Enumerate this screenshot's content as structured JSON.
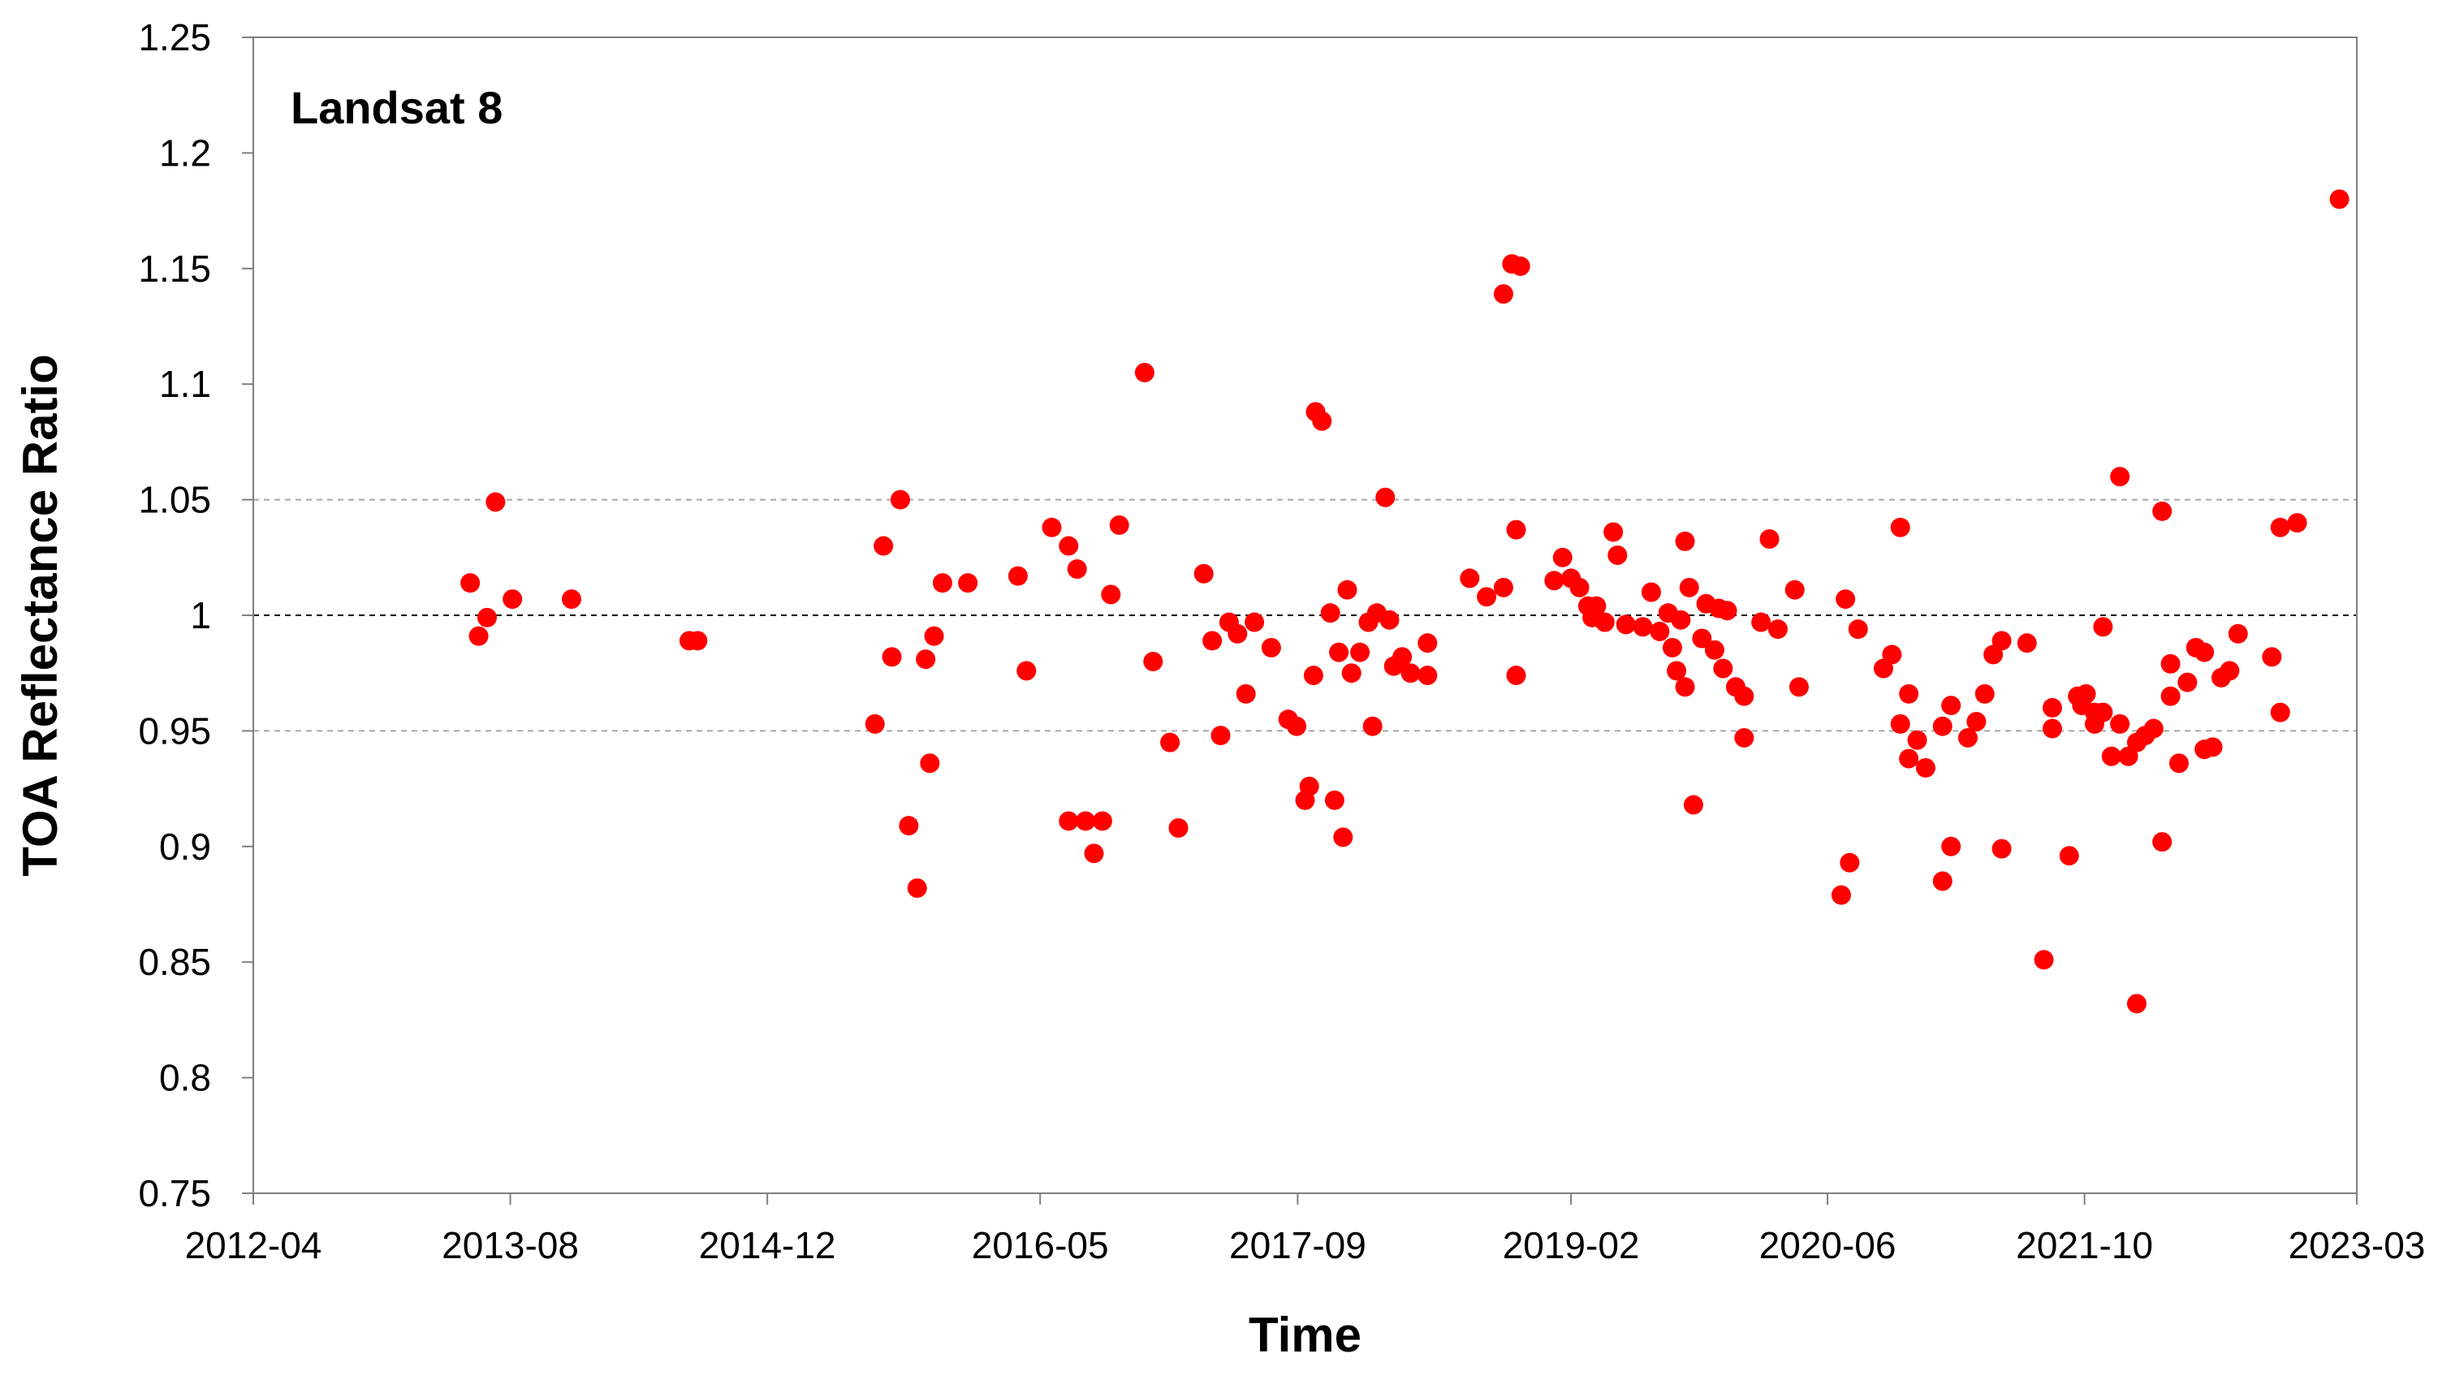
{
  "chart_data": {
    "type": "scatter",
    "title": "",
    "annotation": "Landsat 8",
    "xlabel": "Time",
    "ylabel": "TOA Reflectance Ratio",
    "xlim": [
      "2012-04",
      "2023-03"
    ],
    "ylim": [
      0.75,
      1.25
    ],
    "x_ticks": [
      "2012-04",
      "2013-08",
      "2014-12",
      "2016-05",
      "2017-09",
      "2019-02",
      "2020-06",
      "2021-10",
      "2023-03"
    ],
    "y_ticks": [
      "0.75",
      "0.8",
      "0.85",
      "0.9",
      "0.95",
      "1",
      "1.05",
      "1.1",
      "1.15",
      "1.2",
      "1.25"
    ],
    "reference_lines": [
      {
        "y": 1.05,
        "style": "dashed",
        "color": "#a6a6a6"
      },
      {
        "y": 1.0,
        "style": "dashed",
        "color": "#000000"
      },
      {
        "y": 0.95,
        "style": "dashed",
        "color": "#a6a6a6"
      }
    ],
    "grid": false,
    "legend": "none",
    "marker_color": "#ff0000",
    "points": [
      {
        "x": "2013-05-17",
        "y": 1.014
      },
      {
        "x": "2013-06-02",
        "y": 0.991
      },
      {
        "x": "2013-06-18",
        "y": 0.999
      },
      {
        "x": "2013-07-04",
        "y": 1.049
      },
      {
        "x": "2013-08-05",
        "y": 1.007
      },
      {
        "x": "2013-11-25",
        "y": 1.007
      },
      {
        "x": "2014-07-06",
        "y": 0.989
      },
      {
        "x": "2014-07-22",
        "y": 0.989
      },
      {
        "x": "2015-06-23",
        "y": 0.953
      },
      {
        "x": "2015-07-09",
        "y": 1.03
      },
      {
        "x": "2015-07-25",
        "y": 0.982
      },
      {
        "x": "2015-08-10",
        "y": 1.05
      },
      {
        "x": "2015-08-26",
        "y": 0.909
      },
      {
        "x": "2015-09-11",
        "y": 0.882
      },
      {
        "x": "2015-09-27",
        "y": 0.981
      },
      {
        "x": "2015-10-05",
        "y": 0.936
      },
      {
        "x": "2015-10-13",
        "y": 0.991
      },
      {
        "x": "2015-10-29",
        "y": 1.014
      },
      {
        "x": "2015-12-16",
        "y": 1.014
      },
      {
        "x": "2016-03-20",
        "y": 1.017
      },
      {
        "x": "2016-04-05",
        "y": 0.976
      },
      {
        "x": "2016-05-23",
        "y": 1.038
      },
      {
        "x": "2016-06-24",
        "y": 1.03
      },
      {
        "x": "2016-07-10",
        "y": 1.02
      },
      {
        "x": "2016-06-24",
        "y": 0.911
      },
      {
        "x": "2016-07-26",
        "y": 0.911
      },
      {
        "x": "2016-08-11",
        "y": 0.897
      },
      {
        "x": "2016-08-27",
        "y": 0.911
      },
      {
        "x": "2016-09-12",
        "y": 1.009
      },
      {
        "x": "2016-09-28",
        "y": 1.039
      },
      {
        "x": "2016-11-15",
        "y": 1.105
      },
      {
        "x": "2016-12-01",
        "y": 0.98
      },
      {
        "x": "2017-01-02",
        "y": 0.945
      },
      {
        "x": "2017-01-18",
        "y": 0.908
      },
      {
        "x": "2017-03-07",
        "y": 1.018
      },
      {
        "x": "2017-03-23",
        "y": 0.989
      },
      {
        "x": "2017-04-08",
        "y": 0.948
      },
      {
        "x": "2017-04-24",
        "y": 0.997
      },
      {
        "x": "2017-05-10",
        "y": 0.992
      },
      {
        "x": "2017-05-26",
        "y": 0.966
      },
      {
        "x": "2017-06-11",
        "y": 0.997
      },
      {
        "x": "2017-07-13",
        "y": 0.986
      },
      {
        "x": "2017-08-14",
        "y": 0.955
      },
      {
        "x": "2017-08-30",
        "y": 0.952
      },
      {
        "x": "2017-09-15",
        "y": 0.92
      },
      {
        "x": "2017-09-23",
        "y": 0.926
      },
      {
        "x": "2017-10-01",
        "y": 0.974
      },
      {
        "x": "2017-10-05",
        "y": 1.088
      },
      {
        "x": "2017-10-17",
        "y": 1.084
      },
      {
        "x": "2017-11-02",
        "y": 1.001
      },
      {
        "x": "2017-11-10",
        "y": 0.92
      },
      {
        "x": "2017-11-18",
        "y": 0.984
      },
      {
        "x": "2017-11-26",
        "y": 0.904
      },
      {
        "x": "2017-12-04",
        "y": 1.011
      },
      {
        "x": "2017-12-12",
        "y": 0.975
      },
      {
        "x": "2017-12-28",
        "y": 0.984
      },
      {
        "x": "2018-01-13",
        "y": 0.997
      },
      {
        "x": "2018-01-21",
        "y": 0.952
      },
      {
        "x": "2018-01-29",
        "y": 1.001
      },
      {
        "x": "2018-02-14",
        "y": 1.051
      },
      {
        "x": "2018-02-22",
        "y": 0.998
      },
      {
        "x": "2018-03-02",
        "y": 0.978
      },
      {
        "x": "2018-03-18",
        "y": 0.982
      },
      {
        "x": "2018-04-03",
        "y": 0.975
      },
      {
        "x": "2018-05-05",
        "y": 0.974
      },
      {
        "x": "2018-05-05",
        "y": 0.988
      },
      {
        "x": "2018-07-24",
        "y": 1.016
      },
      {
        "x": "2018-08-25",
        "y": 1.008
      },
      {
        "x": "2018-09-26",
        "y": 1.012
      },
      {
        "x": "2018-09-26",
        "y": 1.139
      },
      {
        "x": "2018-10-12",
        "y": 1.152
      },
      {
        "x": "2018-10-20",
        "y": 1.037
      },
      {
        "x": "2018-10-20",
        "y": 0.974
      },
      {
        "x": "2018-10-28",
        "y": 1.151
      },
      {
        "x": "2018-12-31",
        "y": 1.015
      },
      {
        "x": "2019-01-16",
        "y": 1.025
      },
      {
        "x": "2019-02-01",
        "y": 1.016
      },
      {
        "x": "2019-02-17",
        "y": 1.012
      },
      {
        "x": "2019-03-05",
        "y": 1.004
      },
      {
        "x": "2019-03-13",
        "y": 0.999
      },
      {
        "x": "2019-03-21",
        "y": 1.004
      },
      {
        "x": "2019-04-06",
        "y": 0.997
      },
      {
        "x": "2019-04-30",
        "y": 1.026
      },
      {
        "x": "2019-04-22",
        "y": 1.036
      },
      {
        "x": "2019-05-16",
        "y": 0.996
      },
      {
        "x": "2019-06-17",
        "y": 0.995
      },
      {
        "x": "2019-07-03",
        "y": 1.01
      },
      {
        "x": "2019-07-19",
        "y": 0.993
      },
      {
        "x": "2019-08-04",
        "y": 1.001
      },
      {
        "x": "2019-08-12",
        "y": 0.986
      },
      {
        "x": "2019-08-20",
        "y": 0.976
      },
      {
        "x": "2019-08-28",
        "y": 0.998
      },
      {
        "x": "2019-09-05",
        "y": 1.032
      },
      {
        "x": "2019-09-05",
        "y": 0.969
      },
      {
        "x": "2019-09-13",
        "y": 1.012
      },
      {
        "x": "2019-09-21",
        "y": 0.918
      },
      {
        "x": "2019-10-07",
        "y": 0.99
      },
      {
        "x": "2019-10-15",
        "y": 1.005
      },
      {
        "x": "2019-10-31",
        "y": 0.985
      },
      {
        "x": "2019-11-08",
        "y": 1.003
      },
      {
        "x": "2019-11-16",
        "y": 0.977
      },
      {
        "x": "2019-11-24",
        "y": 1.002
      },
      {
        "x": "2019-12-10",
        "y": 0.969
      },
      {
        "x": "2019-12-26",
        "y": 0.947
      },
      {
        "x": "2019-12-26",
        "y": 0.965
      },
      {
        "x": "2020-01-27",
        "y": 0.997
      },
      {
        "x": "2020-02-12",
        "y": 1.033
      },
      {
        "x": "2020-02-28",
        "y": 0.994
      },
      {
        "x": "2020-03-31",
        "y": 1.011
      },
      {
        "x": "2020-04-08",
        "y": 0.969
      },
      {
        "x": "2020-06-27",
        "y": 0.879
      },
      {
        "x": "2020-07-05",
        "y": 1.007
      },
      {
        "x": "2020-07-13",
        "y": 0.893
      },
      {
        "x": "2020-07-29",
        "y": 0.994
      },
      {
        "x": "2020-09-15",
        "y": 0.977
      },
      {
        "x": "2020-10-01",
        "y": 0.983
      },
      {
        "x": "2020-10-17",
        "y": 1.038
      },
      {
        "x": "2020-10-17",
        "y": 0.953
      },
      {
        "x": "2020-11-02",
        "y": 0.966
      },
      {
        "x": "2020-11-02",
        "y": 0.938
      },
      {
        "x": "2020-11-18",
        "y": 0.946
      },
      {
        "x": "2020-12-04",
        "y": 0.934
      },
      {
        "x": "2021-01-05",
        "y": 0.952
      },
      {
        "x": "2021-01-05",
        "y": 0.885
      },
      {
        "x": "2021-01-21",
        "y": 0.961
      },
      {
        "x": "2021-01-21",
        "y": 0.9
      },
      {
        "x": "2021-02-22",
        "y": 0.947
      },
      {
        "x": "2021-03-10",
        "y": 0.954
      },
      {
        "x": "2021-03-26",
        "y": 0.966
      },
      {
        "x": "2021-04-11",
        "y": 0.983
      },
      {
        "x": "2021-04-27",
        "y": 0.989
      },
      {
        "x": "2021-04-27",
        "y": 0.899
      },
      {
        "x": "2021-06-14",
        "y": 0.988
      },
      {
        "x": "2021-07-16",
        "y": 0.851
      },
      {
        "x": "2021-08-01",
        "y": 0.96
      },
      {
        "x": "2021-08-01",
        "y": 0.951
      },
      {
        "x": "2021-09-02",
        "y": 0.896
      },
      {
        "x": "2021-09-18",
        "y": 0.965
      },
      {
        "x": "2021-09-26",
        "y": 0.961
      },
      {
        "x": "2021-10-04",
        "y": 0.966
      },
      {
        "x": "2021-10-20",
        "y": 0.953
      },
      {
        "x": "2021-10-20",
        "y": 0.958
      },
      {
        "x": "2021-11-05",
        "y": 0.958
      },
      {
        "x": "2021-11-05",
        "y": 0.995
      },
      {
        "x": "2021-11-21",
        "y": 0.939
      },
      {
        "x": "2021-12-07",
        "y": 1.06
      },
      {
        "x": "2021-12-07",
        "y": 0.953
      },
      {
        "x": "2021-12-23",
        "y": 0.939
      },
      {
        "x": "2022-01-08",
        "y": 0.832
      },
      {
        "x": "2022-01-08",
        "y": 0.945
      },
      {
        "x": "2022-01-24",
        "y": 0.948
      },
      {
        "x": "2022-02-09",
        "y": 0.951
      },
      {
        "x": "2022-02-25",
        "y": 0.902
      },
      {
        "x": "2022-02-25",
        "y": 1.045
      },
      {
        "x": "2022-03-13",
        "y": 0.965
      },
      {
        "x": "2022-03-13",
        "y": 0.979
      },
      {
        "x": "2022-03-29",
        "y": 0.936
      },
      {
        "x": "2022-04-14",
        "y": 0.971
      },
      {
        "x": "2022-04-30",
        "y": 0.986
      },
      {
        "x": "2022-05-16",
        "y": 0.984
      },
      {
        "x": "2022-05-16",
        "y": 0.942
      },
      {
        "x": "2022-06-01",
        "y": 0.943
      },
      {
        "x": "2022-06-17",
        "y": 0.973
      },
      {
        "x": "2022-07-03",
        "y": 0.976
      },
      {
        "x": "2022-07-19",
        "y": 0.992
      },
      {
        "x": "2022-09-21",
        "y": 0.982
      },
      {
        "x": "2022-10-07",
        "y": 0.958
      },
      {
        "x": "2022-10-07",
        "y": 1.038
      },
      {
        "x": "2022-11-08",
        "y": 1.04
      },
      {
        "x": "2023-01-27",
        "y": 1.18
      }
    ]
  }
}
